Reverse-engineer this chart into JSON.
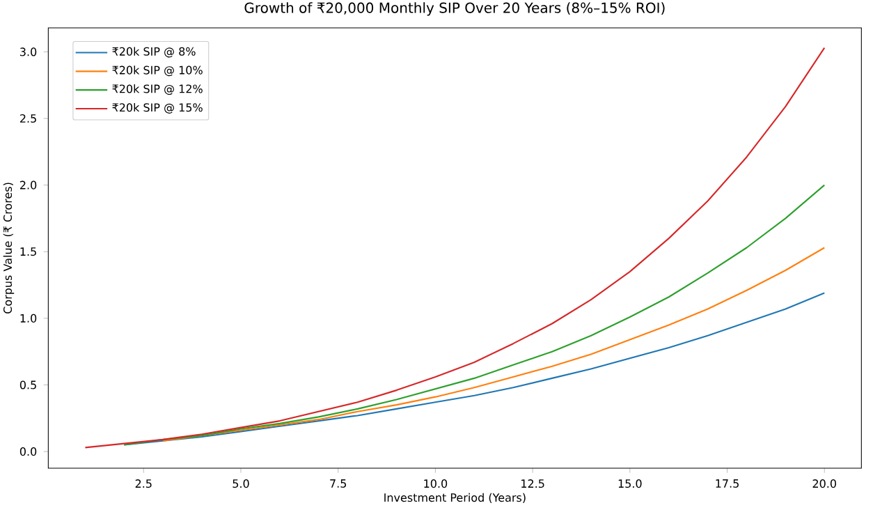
{
  "chart_data": {
    "type": "line",
    "title": "Growth of ₹20,000 Monthly SIP Over 20 Years (8%–15% ROI)",
    "xlabel": "Investment Period (Years)",
    "ylabel": "Corpus Value (₹ Crores)",
    "x": [
      1,
      2,
      3,
      4,
      5,
      6,
      7,
      8,
      9,
      10,
      11,
      12,
      13,
      14,
      15,
      16,
      17,
      18,
      19,
      20
    ],
    "series": [
      {
        "name": "₹20k SIP @ 8%",
        "color": "#1f77b4",
        "values": [
          null,
          0.05,
          0.08,
          0.11,
          0.15,
          0.19,
          0.23,
          0.27,
          0.32,
          0.37,
          0.42,
          0.48,
          0.55,
          0.62,
          0.7,
          0.78,
          0.87,
          0.97,
          1.07,
          1.19
        ]
      },
      {
        "name": "₹20k SIP @ 10%",
        "color": "#ff7f0e",
        "values": [
          null,
          null,
          0.08,
          0.12,
          0.16,
          0.2,
          0.24,
          0.3,
          0.35,
          0.41,
          0.48,
          0.56,
          0.64,
          0.73,
          0.84,
          0.95,
          1.07,
          1.21,
          1.36,
          1.53
        ]
      },
      {
        "name": "₹20k SIP @ 12%",
        "color": "#2ca02c",
        "values": [
          null,
          0.05,
          0.09,
          0.12,
          0.17,
          0.21,
          0.26,
          0.32,
          0.39,
          0.47,
          0.55,
          0.65,
          0.75,
          0.87,
          1.01,
          1.16,
          1.34,
          1.53,
          1.75,
          2.0
        ]
      },
      {
        "name": "₹20k SIP @ 15%",
        "color": "#d62728",
        "values": [
          0.03,
          0.06,
          0.09,
          0.13,
          0.18,
          0.23,
          0.3,
          0.37,
          0.46,
          0.56,
          0.67,
          0.81,
          0.96,
          1.14,
          1.35,
          1.6,
          1.88,
          2.21,
          2.59,
          3.03
        ]
      }
    ],
    "xlim": [
      0.05,
      20.95
    ],
    "ylim": [
      -0.125,
      3.18
    ],
    "xticks": [
      2.5,
      {
        "value": 5,
        "label": "5.0"
      },
      {
        "value": 7.5,
        "label": "7.5"
      },
      {
        "value": 10,
        "label": "10.0"
      },
      {
        "value": 12.5,
        "label": "12.5"
      },
      {
        "value": 15,
        "label": "15.0"
      },
      {
        "value": 17.5,
        "label": "17.5"
      },
      {
        "value": 20,
        "label": "20.0"
      }
    ],
    "yticks": [
      {
        "value": 0,
        "label": "0.0"
      },
      0.5,
      {
        "value": 1,
        "label": "1.0"
      },
      1.5,
      {
        "value": 2,
        "label": "2.0"
      },
      2.5,
      {
        "value": 3,
        "label": "3.0"
      }
    ],
    "legend": "top left",
    "grid": false,
    "marker": "none",
    "line_style": "solid"
  }
}
